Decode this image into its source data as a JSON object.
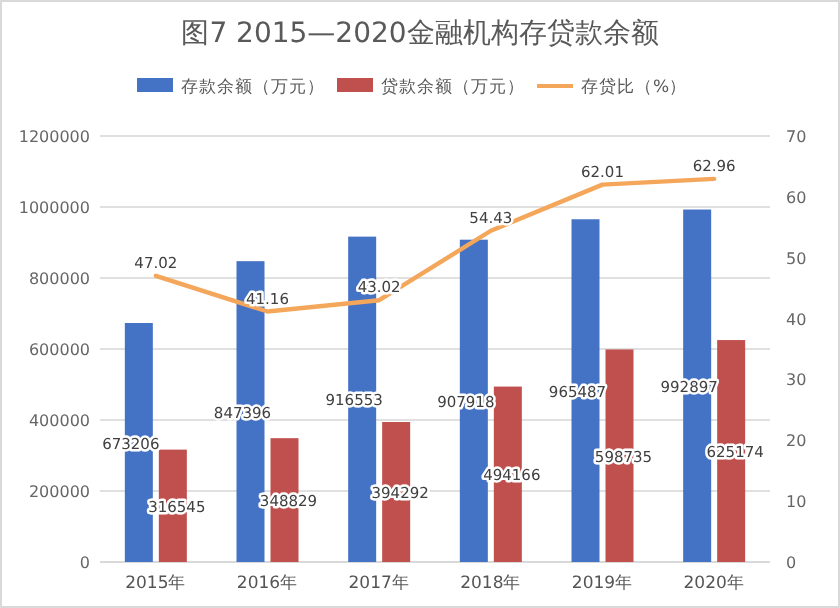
{
  "chart_data": {
    "type": "bar",
    "title": "图7 2015—2020金融机构存贷款余额",
    "categories": [
      "2015年",
      "2016年",
      "2017年",
      "2018年",
      "2019年",
      "2020年"
    ],
    "series": [
      {
        "name": "存款余额（万元）",
        "color": "#4472c4",
        "values": [
          673206,
          847396,
          916553,
          907918,
          965487,
          992897
        ]
      },
      {
        "name": "贷款余额（万元）",
        "color": "#c0504d",
        "values": [
          316545,
          348829,
          394292,
          494166,
          598735,
          625174
        ]
      },
      {
        "name": "存贷比（%）",
        "type": "line",
        "axis": "y2",
        "color": "#f4a65a",
        "values": [
          47.02,
          41.16,
          43.02,
          54.43,
          62.01,
          62.96
        ]
      }
    ],
    "ylim": [
      0,
      1200000
    ],
    "yticks": [
      0,
      200000,
      400000,
      600000,
      800000,
      1000000,
      1200000
    ],
    "y2lim": [
      0,
      70
    ],
    "y2ticks": [
      0,
      10,
      20,
      30,
      40,
      50,
      60,
      70
    ],
    "grid": "y",
    "legend": "top",
    "data_labels": true,
    "marker": "none",
    "line_style": "solid"
  }
}
